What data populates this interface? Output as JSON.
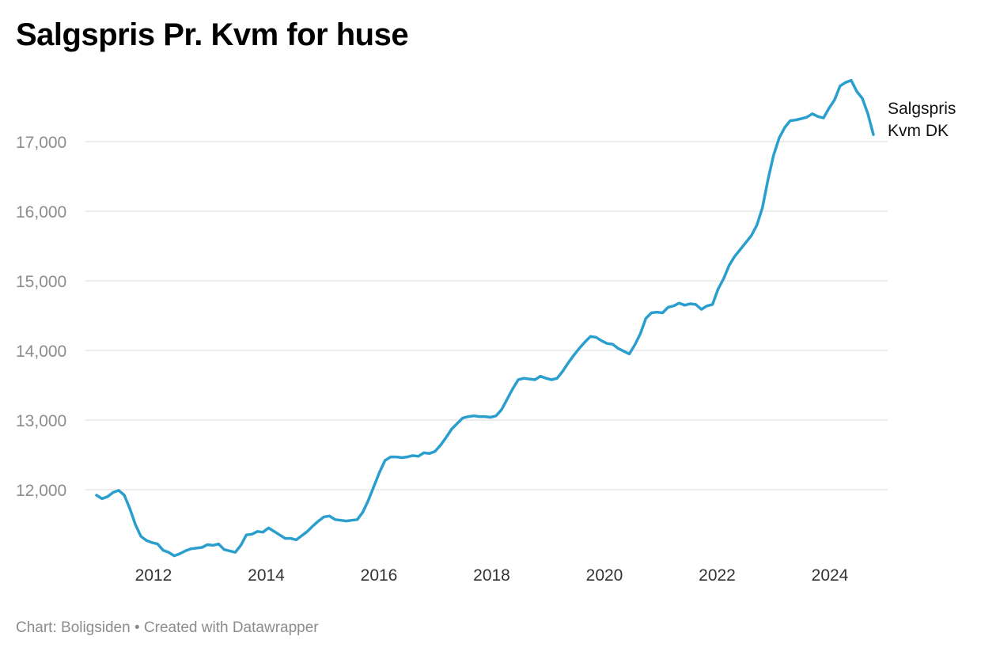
{
  "header": {
    "title": "Salgspris Pr. Kvm for huse"
  },
  "footer": {
    "source": "Chart: Boligsiden • Created with Datawrapper"
  },
  "colors": {
    "line": "#2a9fce",
    "grid": "#e2e2e2",
    "axis_text": "#8c8c8c"
  },
  "chart_data": {
    "type": "line",
    "title": "Salgspris Pr. Kvm for huse",
    "xlabel": "",
    "ylabel": "",
    "x_ticks": [
      2012,
      2014,
      2016,
      2018,
      2020,
      2022,
      2024
    ],
    "x_tick_labels": [
      "2012",
      "2014",
      "2016",
      "2018",
      "2020",
      "2022",
      "2024"
    ],
    "y_ticks": [
      12000,
      13000,
      14000,
      15000,
      16000,
      17000
    ],
    "y_tick_labels": [
      "12,000",
      "13,000",
      "14,000",
      "15,000",
      "16,000",
      "17,000"
    ],
    "xlim": [
      2010.95,
      2024.75
    ],
    "ylim": [
      11000,
      18000
    ],
    "grid": true,
    "series": [
      {
        "name_lines": [
          "Salgspris",
          "Kvm DK"
        ],
        "points": [
          [
            2011.0,
            11920
          ],
          [
            2011.1,
            11870
          ],
          [
            2011.2,
            11900
          ],
          [
            2011.3,
            11960
          ],
          [
            2011.4,
            11990
          ],
          [
            2011.5,
            11920
          ],
          [
            2011.6,
            11730
          ],
          [
            2011.7,
            11500
          ],
          [
            2011.8,
            11330
          ],
          [
            2011.9,
            11270
          ],
          [
            2012.0,
            11240
          ],
          [
            2012.1,
            11220
          ],
          [
            2012.2,
            11130
          ],
          [
            2012.3,
            11100
          ],
          [
            2012.4,
            11050
          ],
          [
            2012.5,
            11080
          ],
          [
            2012.6,
            11120
          ],
          [
            2012.7,
            11150
          ],
          [
            2012.8,
            11160
          ],
          [
            2012.9,
            11170
          ],
          [
            2013.0,
            11210
          ],
          [
            2013.1,
            11200
          ],
          [
            2013.2,
            11220
          ],
          [
            2013.3,
            11140
          ],
          [
            2013.4,
            11120
          ],
          [
            2013.5,
            11100
          ],
          [
            2013.6,
            11200
          ],
          [
            2013.7,
            11350
          ],
          [
            2013.8,
            11360
          ],
          [
            2013.9,
            11400
          ],
          [
            2014.0,
            11390
          ],
          [
            2014.1,
            11450
          ],
          [
            2014.2,
            11400
          ],
          [
            2014.3,
            11350
          ],
          [
            2014.4,
            11300
          ],
          [
            2014.5,
            11300
          ],
          [
            2014.6,
            11280
          ],
          [
            2014.7,
            11340
          ],
          [
            2014.8,
            11400
          ],
          [
            2014.9,
            11480
          ],
          [
            2015.0,
            11550
          ],
          [
            2015.1,
            11610
          ],
          [
            2015.2,
            11620
          ],
          [
            2015.3,
            11570
          ],
          [
            2015.4,
            11560
          ],
          [
            2015.5,
            11550
          ],
          [
            2015.6,
            11560
          ],
          [
            2015.7,
            11570
          ],
          [
            2015.8,
            11680
          ],
          [
            2015.9,
            11850
          ],
          [
            2016.0,
            12050
          ],
          [
            2016.1,
            12250
          ],
          [
            2016.2,
            12420
          ],
          [
            2016.3,
            12470
          ],
          [
            2016.4,
            12470
          ],
          [
            2016.5,
            12460
          ],
          [
            2016.6,
            12470
          ],
          [
            2016.7,
            12490
          ],
          [
            2016.8,
            12480
          ],
          [
            2016.9,
            12530
          ],
          [
            2017.0,
            12520
          ],
          [
            2017.1,
            12550
          ],
          [
            2017.2,
            12640
          ],
          [
            2017.3,
            12750
          ],
          [
            2017.4,
            12870
          ],
          [
            2017.5,
            12950
          ],
          [
            2017.6,
            13030
          ],
          [
            2017.7,
            13050
          ],
          [
            2017.8,
            13060
          ],
          [
            2017.9,
            13050
          ],
          [
            2018.0,
            13050
          ],
          [
            2018.1,
            13040
          ],
          [
            2018.2,
            13060
          ],
          [
            2018.3,
            13150
          ],
          [
            2018.4,
            13300
          ],
          [
            2018.5,
            13450
          ],
          [
            2018.6,
            13580
          ],
          [
            2018.7,
            13600
          ],
          [
            2018.8,
            13590
          ],
          [
            2018.9,
            13580
          ],
          [
            2019.0,
            13630
          ],
          [
            2019.1,
            13600
          ],
          [
            2019.2,
            13580
          ],
          [
            2019.3,
            13600
          ],
          [
            2019.4,
            13700
          ],
          [
            2019.5,
            13820
          ],
          [
            2019.6,
            13930
          ],
          [
            2019.7,
            14030
          ],
          [
            2019.8,
            14120
          ],
          [
            2019.9,
            14200
          ],
          [
            2020.0,
            14190
          ],
          [
            2020.1,
            14140
          ],
          [
            2020.2,
            14100
          ],
          [
            2020.3,
            14090
          ],
          [
            2020.4,
            14030
          ],
          [
            2020.5,
            13990
          ],
          [
            2020.6,
            13950
          ],
          [
            2020.7,
            14080
          ],
          [
            2020.8,
            14240
          ],
          [
            2020.9,
            14460
          ],
          [
            2021.0,
            14540
          ],
          [
            2021.1,
            14550
          ],
          [
            2021.2,
            14540
          ],
          [
            2021.3,
            14620
          ],
          [
            2021.4,
            14640
          ],
          [
            2021.5,
            14680
          ],
          [
            2021.6,
            14650
          ],
          [
            2021.7,
            14670
          ],
          [
            2021.8,
            14660
          ],
          [
            2021.9,
            14590
          ],
          [
            2022.0,
            14640
          ],
          [
            2022.1,
            14660
          ],
          [
            2022.2,
            14880
          ],
          [
            2022.3,
            15030
          ],
          [
            2022.4,
            15220
          ],
          [
            2022.5,
            15350
          ],
          [
            2022.6,
            15450
          ],
          [
            2022.7,
            15550
          ],
          [
            2022.8,
            15650
          ],
          [
            2022.9,
            15800
          ],
          [
            2023.0,
            16050
          ],
          [
            2023.1,
            16450
          ],
          [
            2023.2,
            16800
          ],
          [
            2023.3,
            17050
          ],
          [
            2023.4,
            17200
          ],
          [
            2023.5,
            17300
          ],
          [
            2023.6,
            17310
          ],
          [
            2023.7,
            17330
          ],
          [
            2023.8,
            17350
          ],
          [
            2023.9,
            17400
          ],
          [
            2024.0,
            17360
          ],
          [
            2024.1,
            17340
          ],
          [
            2024.2,
            17480
          ],
          [
            2024.3,
            17600
          ],
          [
            2024.4,
            17800
          ],
          [
            2024.5,
            17850
          ],
          [
            2024.6,
            17880
          ],
          [
            2024.7,
            17720
          ],
          [
            2024.8,
            17620
          ],
          [
            2024.9,
            17400
          ],
          [
            2025.0,
            17100
          ]
        ]
      }
    ]
  }
}
